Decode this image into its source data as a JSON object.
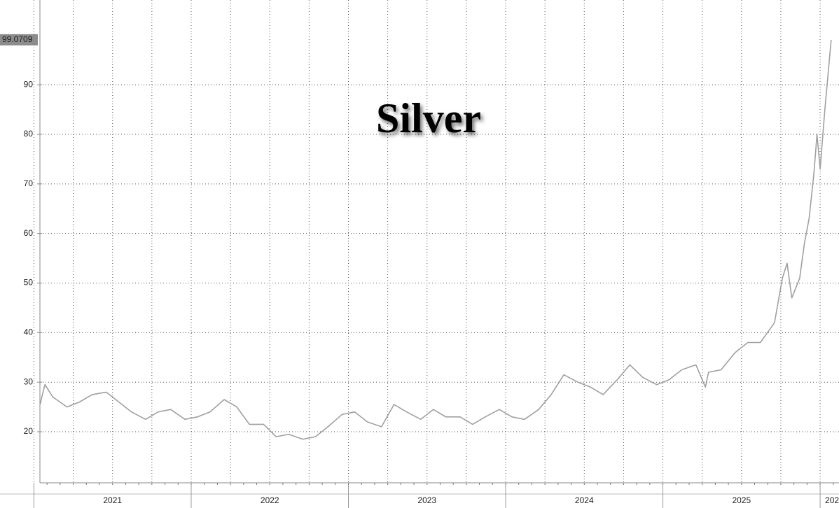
{
  "chart_data": {
    "type": "line",
    "title": "Silver",
    "x": [
      2021.04,
      2021.05,
      2021.07,
      2021.12,
      2021.21,
      2021.29,
      2021.37,
      2021.46,
      2021.54,
      2021.62,
      2021.71,
      2021.79,
      2021.87,
      2021.96,
      2022.04,
      2022.12,
      2022.21,
      2022.29,
      2022.37,
      2022.46,
      2022.54,
      2022.62,
      2022.71,
      2022.79,
      2022.87,
      2022.96,
      2023.04,
      2023.12,
      2023.21,
      2023.29,
      2023.37,
      2023.46,
      2023.54,
      2023.62,
      2023.71,
      2023.79,
      2023.87,
      2023.96,
      2024.04,
      2024.12,
      2024.21,
      2024.29,
      2024.37,
      2024.46,
      2024.54,
      2024.62,
      2024.71,
      2024.79,
      2024.87,
      2024.96,
      2025.04,
      2025.12,
      2025.21,
      2025.27,
      2025.29,
      2025.37,
      2025.46,
      2025.54,
      2025.62,
      2025.71,
      2025.76,
      2025.79,
      2025.82,
      2025.87,
      2025.9,
      2025.93,
      2025.96,
      2025.98,
      2026.0,
      2026.03,
      2026.05,
      2026.07
    ],
    "series": [
      {
        "name": "Silver",
        "color": "#a0a0a0",
        "values": [
          25.5,
          27,
          29.5,
          27,
          25,
          26,
          27.5,
          28,
          26,
          24,
          22.5,
          24,
          24.5,
          22.5,
          23,
          24,
          26.5,
          25,
          21.5,
          21.5,
          19,
          19.5,
          18.5,
          19,
          21,
          23.5,
          24,
          22,
          21,
          25.5,
          24,
          22.5,
          24.5,
          23,
          23,
          21.5,
          23,
          24.5,
          23,
          22.5,
          24.5,
          27.5,
          31.5,
          30,
          29,
          27.5,
          30.5,
          33.5,
          31,
          29.5,
          30.5,
          32.5,
          33.5,
          29,
          32,
          32.5,
          36,
          38,
          38,
          42,
          51,
          54,
          47,
          51,
          58,
          63,
          72,
          80,
          73,
          85,
          92,
          99.0709
        ]
      }
    ],
    "xlim": [
      2021.038,
      2026.12
    ],
    "xticks": [
      2021,
      2022,
      2023,
      2024,
      2025,
      {
        "value": 2026,
        "label": "202"
      }
    ],
    "ylim": [
      9.7,
      107.1
    ],
    "yticks": [
      20,
      30,
      40,
      50,
      60,
      70,
      80,
      90
    ],
    "grid": true
  }
}
